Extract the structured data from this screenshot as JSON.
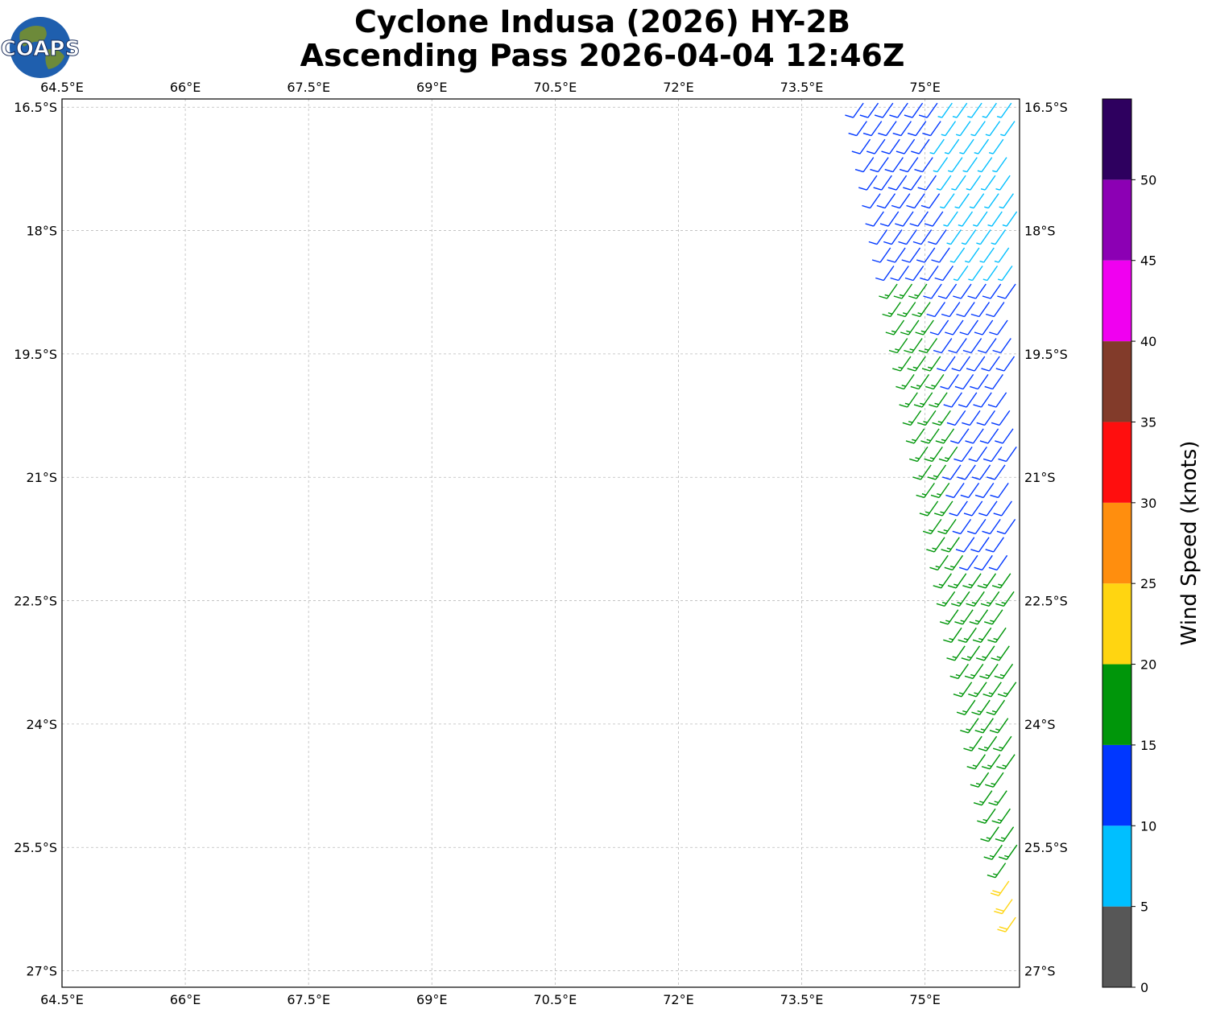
{
  "header": {
    "title_line1": "Cyclone Indusa (2026) HY-2B",
    "title_line2": "Ascending Pass 2026-04-04 12:46Z"
  },
  "logo": {
    "text": "COAPS",
    "icon": "globe-logo-icon"
  },
  "map": {
    "lon_labels": [
      "64.5°E",
      "66°E",
      "67.5°E",
      "69°E",
      "70.5°E",
      "72°E",
      "73.5°E",
      "75°E"
    ],
    "lat_labels": [
      "16.5°S",
      "18°S",
      "19.5°S",
      "21°S",
      "22.5°S",
      "24°S",
      "25.5°S",
      "27°S"
    ],
    "lon_values": [
      64.5,
      66,
      67.5,
      69,
      70.5,
      72,
      73.5,
      75
    ],
    "lat_values": [
      -16.5,
      -18,
      -19.5,
      -21,
      -22.5,
      -24,
      -25.5,
      -27
    ],
    "extent": {
      "lon_min": 64.5,
      "lon_max": 76.15,
      "lat_min": -27.2,
      "lat_max": -16.4
    },
    "gridlines": true
  },
  "colorbar": {
    "label": "Wind Speed (knots)",
    "ticks": [
      "0",
      "5",
      "10",
      "15",
      "20",
      "25",
      "30",
      "35",
      "40",
      "45",
      "50"
    ],
    "bins": [
      {
        "from": 0,
        "to": 5,
        "color": "#575757"
      },
      {
        "from": 5,
        "to": 10,
        "color": "#00bfff"
      },
      {
        "from": 10,
        "to": 15,
        "color": "#0037ff"
      },
      {
        "from": 15,
        "to": 20,
        "color": "#00960a"
      },
      {
        "from": 20,
        "to": 25,
        "color": "#ffd511"
      },
      {
        "from": 25,
        "to": 30,
        "color": "#ff8e0e"
      },
      {
        "from": 30,
        "to": 35,
        "color": "#ff0e0e"
      },
      {
        "from": 35,
        "to": 40,
        "color": "#823b2a"
      },
      {
        "from": 40,
        "to": 45,
        "color": "#f000f0"
      },
      {
        "from": 45,
        "to": 50,
        "color": "#8c00b4"
      },
      {
        "from": 50,
        "to": 55,
        "color": "#2e005f"
      }
    ]
  },
  "swath": {
    "description_zones": [
      {
        "lat_from": -16.4,
        "lat_to": -18.6,
        "speed_west": 12,
        "speed_east": 8
      },
      {
        "lat_from": -18.6,
        "lat_to": -22.0,
        "speed_west": 16,
        "speed_east": 13
      },
      {
        "lat_from": -22.0,
        "lat_to": -25.8,
        "speed_west": 17,
        "speed_east": 16
      },
      {
        "lat_from": -25.8,
        "lat_to": -26.6,
        "speed_west": 21,
        "speed_east": 21
      }
    ],
    "wind_direction_deg": 215
  }
}
